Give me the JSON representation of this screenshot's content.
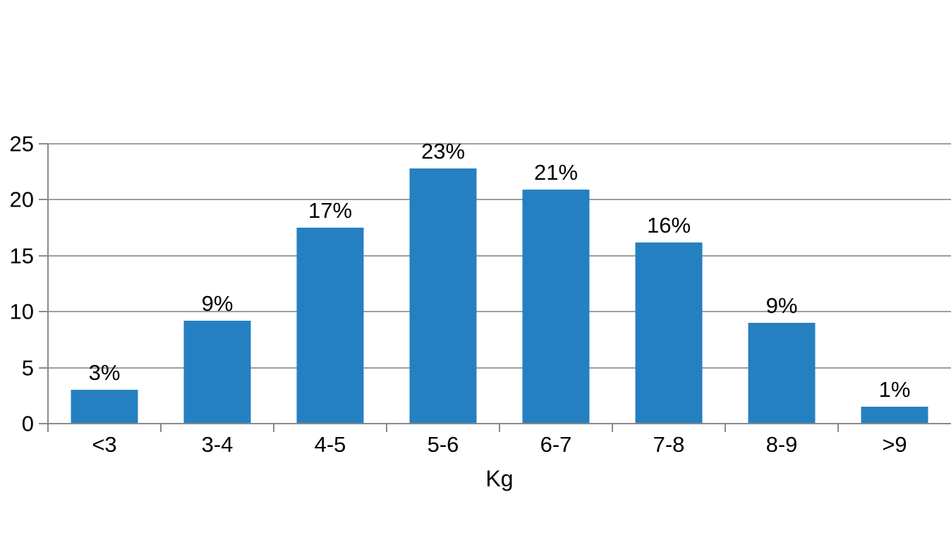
{
  "chart_data": {
    "type": "bar",
    "title": "",
    "xlabel": "Kg",
    "ylabel": "",
    "categories": [
      "<3",
      "3-4",
      "4-5",
      "5-6",
      "6-7",
      "7-8",
      "8-9",
      ">9"
    ],
    "values": [
      3,
      9,
      17,
      23,
      21,
      16,
      9,
      1
    ],
    "values_drawn": [
      3.0,
      9.2,
      17.5,
      22.8,
      20.9,
      16.2,
      9.0,
      1.5
    ],
    "data_labels": [
      "3%",
      "9%",
      "17%",
      "23%",
      "21%",
      "16%",
      "9%",
      "1%"
    ],
    "yticks": [
      "0",
      "5",
      "10",
      "15",
      "20",
      "25"
    ],
    "ylim": [
      0,
      25
    ],
    "grid": "horizontal",
    "legend": "none",
    "colors": {
      "bar": "#2580c1",
      "grid_line": "#9e9e9e",
      "axis_line": "#8a8a8a",
      "text": "#000000",
      "background": "#ffffff"
    }
  }
}
